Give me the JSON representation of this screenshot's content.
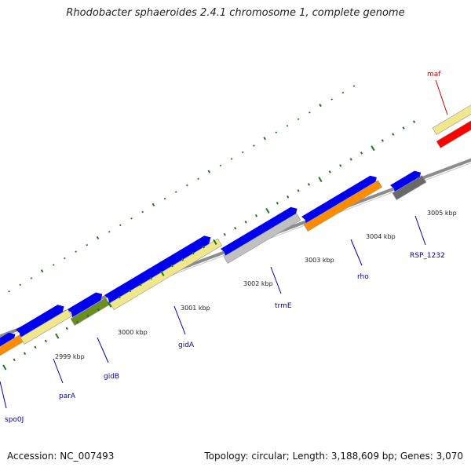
{
  "title": "Rhodobacter sphaeroides 2.4.1 chromosome 1, complete genome",
  "footer": {
    "accession": "Accession: NC_007493",
    "stats": "Topology: circular; Length: 3,188,609 bp; Genes: 3,070"
  },
  "colors": {
    "cds_forward": "#0000ee",
    "backbone": "#8c8c8c",
    "tick": "#1a7a1a",
    "label_blue": "#0000aa",
    "label_red": "#cc0000"
  },
  "ticks": [
    {
      "label": "2999 kbp"
    },
    {
      "label": "3000 kbp"
    },
    {
      "label": "3001 kbp"
    },
    {
      "label": "3002 kbp"
    },
    {
      "label": "3003 kbp"
    },
    {
      "label": "3004 kbp"
    },
    {
      "label": "3005 kbp"
    }
  ],
  "genes": [
    {
      "name": "spo0J",
      "color": "#ff8c00"
    },
    {
      "name": "parA",
      "color": "#f0e68c"
    },
    {
      "name": "gidB",
      "color": "#6b8e23"
    },
    {
      "name": "gidA",
      "color": "#f0e68c"
    },
    {
      "name": "trmE",
      "color": "#c0c0c0"
    },
    {
      "name": "rho",
      "color": "#ff8c00"
    },
    {
      "name": "RSP_1232",
      "color": "#696969"
    },
    {
      "name": "maf",
      "color": "#f0e68c"
    },
    {
      "name": "",
      "color": "#ff0000"
    }
  ]
}
